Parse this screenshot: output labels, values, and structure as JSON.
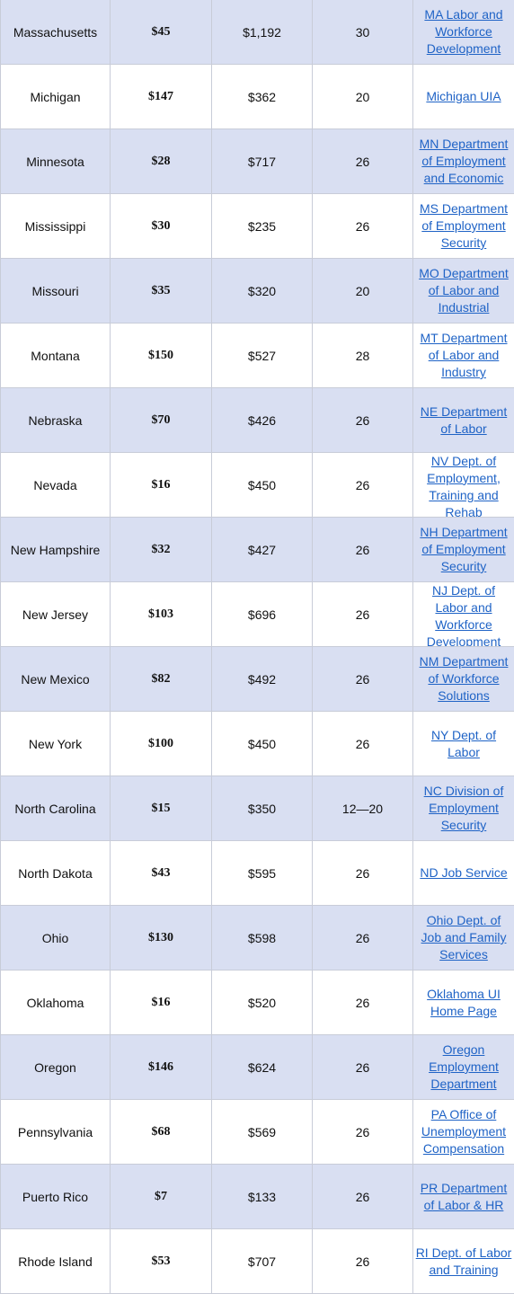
{
  "rows": [
    {
      "state": "Massachusetts",
      "min": "$45",
      "max": "$1,192",
      "weeks": "30",
      "agency": "MA Labor and Workforce Development"
    },
    {
      "state": "Michigan",
      "min": "$147",
      "max": "$362",
      "weeks": "20",
      "agency": "Michigan UIA"
    },
    {
      "state": "Minnesota",
      "min": "$28",
      "max": "$717",
      "weeks": "26",
      "agency": "MN Department of Employment and Economic"
    },
    {
      "state": "Mississippi",
      "min": "$30",
      "max": "$235",
      "weeks": "26",
      "agency": "MS Department of Employment Security"
    },
    {
      "state": "Missouri",
      "min": "$35",
      "max": "$320",
      "weeks": "20",
      "agency": "MO Department of Labor and Industrial"
    },
    {
      "state": "Montana",
      "min": "$150",
      "max": "$527",
      "weeks": "28",
      "agency": "MT Department of Labor and Industry"
    },
    {
      "state": "Nebraska",
      "min": "$70",
      "max": "$426",
      "weeks": "26",
      "agency": "NE Department of Labor"
    },
    {
      "state": "Nevada",
      "min": "$16",
      "max": "$450",
      "weeks": "26",
      "agency": "NV Dept. of Employment, Training and Rehab"
    },
    {
      "state": "New Hampshire",
      "min": "$32",
      "max": "$427",
      "weeks": "26",
      "agency": "NH Department of Employment Security"
    },
    {
      "state": "New Jersey",
      "min": "$103",
      "max": "$696",
      "weeks": "26",
      "agency": "NJ Dept. of Labor and Workforce Development"
    },
    {
      "state": "New Mexico",
      "min": "$82",
      "max": "$492",
      "weeks": "26",
      "agency": "NM Department of Workforce Solutions"
    },
    {
      "state": "New York",
      "min": "$100",
      "max": "$450",
      "weeks": "26",
      "agency": "NY Dept. of Labor"
    },
    {
      "state": "North Carolina",
      "min": "$15",
      "max": "$350",
      "weeks": "12—20",
      "agency": "NC Division of Employment Security"
    },
    {
      "state": "North Dakota",
      "min": "$43",
      "max": "$595",
      "weeks": "26",
      "agency": "ND Job Service"
    },
    {
      "state": "Ohio",
      "min": "$130",
      "max": "$598",
      "weeks": "26",
      "agency": "Ohio Dept. of Job and Family Services"
    },
    {
      "state": "Oklahoma",
      "min": "$16",
      "max": "$520",
      "weeks": "26",
      "agency": "Oklahoma UI Home Page"
    },
    {
      "state": "Oregon",
      "min": "$146",
      "max": "$624",
      "weeks": "26",
      "agency": "Oregon Employment Department"
    },
    {
      "state": "Pennsylvania",
      "min": "$68",
      "max": "$569",
      "weeks": "26",
      "agency": "PA Office of Unemployment Compensation"
    },
    {
      "state": "Puerto Rico",
      "min": "$7",
      "max": "$133",
      "weeks": "26",
      "agency": "PR Department of Labor & HR"
    },
    {
      "state": "Rhode Island",
      "min": "$53",
      "max": "$707",
      "weeks": "26",
      "agency": "RI Dept. of Labor and Training"
    }
  ],
  "colors": {
    "shaded_row": "#d9dff2",
    "plain_row": "#ffffff",
    "link": "#1f63c6",
    "border": "#c8ccd8"
  }
}
